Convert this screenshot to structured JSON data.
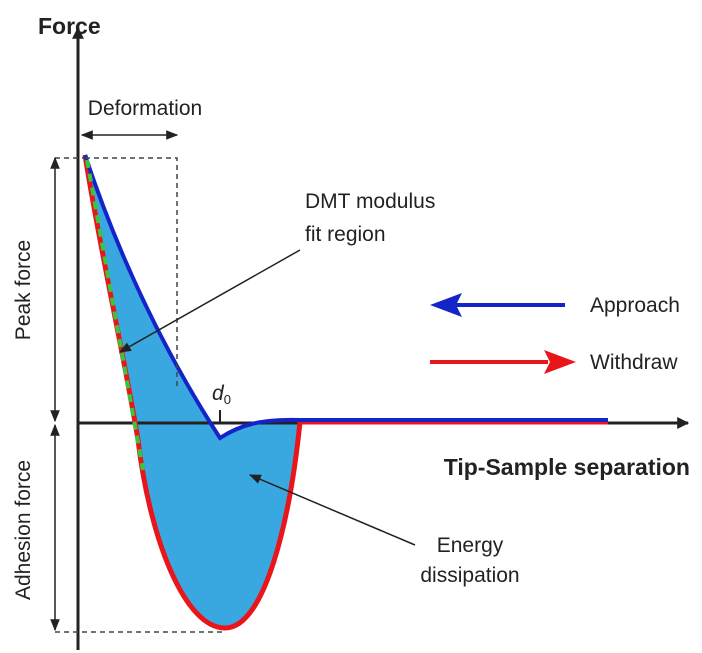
{
  "axes": {
    "y_label": "Force",
    "x_label": "Tip-Sample separation"
  },
  "annotations": {
    "deformation": "Deformation",
    "dmt": [
      "DMT modulus",
      "fit region"
    ],
    "peak_force": "Peak force",
    "adhesion_force": "Adhesion force",
    "d0": {
      "symbol": "d",
      "subscript": "0"
    },
    "energy": [
      "Energy",
      "dissipation"
    ]
  },
  "legend": {
    "approach": "Approach",
    "withdraw": "Withdraw"
  }
}
